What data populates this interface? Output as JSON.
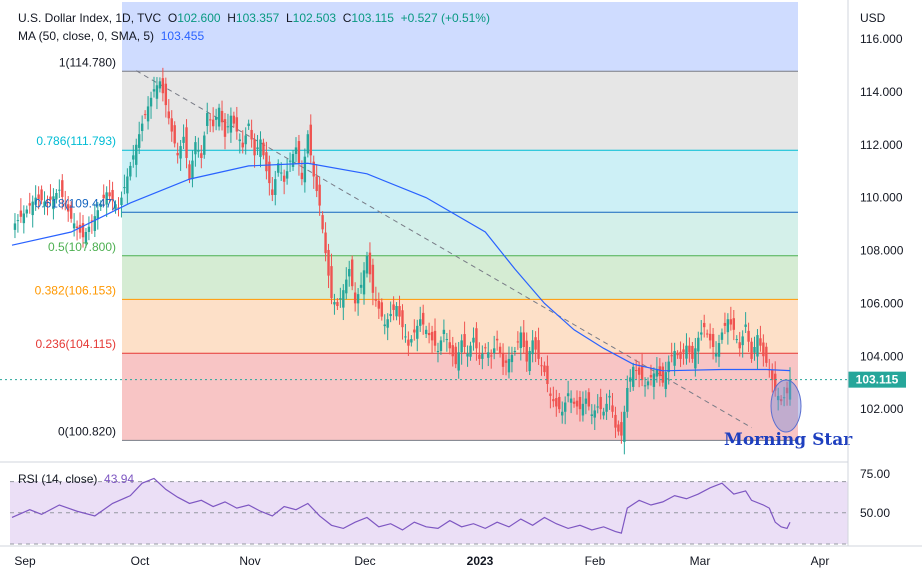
{
  "header": {
    "symbol": "U.S. Dollar Index, 1D, TVC",
    "open_label": "O",
    "open": "102.600",
    "high_label": "H",
    "high": "103.357",
    "low_label": "L",
    "low": "102.503",
    "close_label": "C",
    "close": "103.115",
    "change": "+0.527 (+0.51%)",
    "ma_label": "MA (50, close, 0, SMA, 5)",
    "ma_value": "103.455"
  },
  "rsi_header": {
    "label": "RSI (14, close)",
    "value": "43.94"
  },
  "currency": "USD",
  "annotation": "Morning Star",
  "price_tag": "103.115",
  "colors": {
    "up": "#26a69a",
    "down": "#ef5350",
    "ma": "#2962ff",
    "rsi": "#7e57c2",
    "fib_0": "#f8c5c5",
    "fib_236": "#fde0c8",
    "fib_382": "#d5ecd3",
    "fib_5": "#d4f0ea",
    "fib_618": "#cdf0f6",
    "fib_786": "#e6e6e6",
    "fib_top": "#cfdcff"
  },
  "chart_data": [
    {
      "type": "candlestick",
      "title": "U.S. Dollar Index, 1D, TVC",
      "ylabel": "USD",
      "ylim": [
        100.0,
        117.4
      ],
      "y_ticks": [
        "116.000",
        "114.000",
        "112.000",
        "110.000",
        "108.000",
        "106.000",
        "104.000",
        "102.000"
      ],
      "x_ticks": [
        "Sep",
        "Oct",
        "Nov",
        "Dec",
        "2023",
        "Feb",
        "Mar",
        "Apr"
      ],
      "fib_levels": [
        {
          "label": "1(114.780)",
          "value": 114.78
        },
        {
          "label": "0.786(111.793)",
          "value": 111.793
        },
        {
          "label": "0.618(109.447)",
          "value": 109.447
        },
        {
          "label": "0.5(107.800)",
          "value": 107.8
        },
        {
          "label": "0.382(106.153)",
          "value": 106.153
        },
        {
          "label": "0.236(104.115)",
          "value": 104.115
        },
        {
          "label": "0(100.820)",
          "value": 100.82
        }
      ],
      "close_points": [
        [
          0,
          108.9
        ],
        [
          4,
          109.4
        ],
        [
          8,
          110.0
        ],
        [
          12,
          109.8
        ],
        [
          16,
          110.3
        ],
        [
          20,
          109.2
        ],
        [
          24,
          108.5
        ],
        [
          28,
          109.3
        ],
        [
          32,
          110.2
        ],
        [
          36,
          109.6
        ],
        [
          40,
          111.2
        ],
        [
          44,
          112.8
        ],
        [
          48,
          114.1
        ],
        [
          50,
          114.4
        ],
        [
          52,
          113.5
        ],
        [
          54,
          112.5
        ],
        [
          56,
          111.6
        ],
        [
          58,
          112.3
        ],
        [
          60,
          110.7
        ],
        [
          62,
          112.1
        ],
        [
          64,
          111.5
        ],
        [
          66,
          113.2
        ],
        [
          68,
          112.7
        ],
        [
          70,
          113.4
        ],
        [
          72,
          112.3
        ],
        [
          74,
          113.1
        ],
        [
          76,
          112.5
        ],
        [
          78,
          111.9
        ],
        [
          80,
          112.8
        ],
        [
          82,
          111.6
        ],
        [
          84,
          112.2
        ],
        [
          86,
          111.0
        ],
        [
          88,
          110.1
        ],
        [
          90,
          111.3
        ],
        [
          92,
          110.6
        ],
        [
          94,
          111.4
        ],
        [
          96,
          111.9
        ],
        [
          98,
          110.7
        ],
        [
          100,
          112.4
        ],
        [
          102,
          110.8
        ],
        [
          104,
          109.7
        ],
        [
          106,
          107.9
        ],
        [
          108,
          106.2
        ],
        [
          110,
          105.9
        ],
        [
          112,
          106.5
        ],
        [
          114,
          107.3
        ],
        [
          116,
          106.0
        ],
        [
          118,
          106.7
        ],
        [
          120,
          107.8
        ],
        [
          122,
          106.4
        ],
        [
          124,
          105.8
        ],
        [
          126,
          105.2
        ],
        [
          128,
          105.6
        ],
        [
          130,
          105.9
        ],
        [
          132,
          105.1
        ],
        [
          134,
          104.4
        ],
        [
          136,
          104.9
        ],
        [
          138,
          105.4
        ],
        [
          140,
          105.0
        ],
        [
          142,
          104.6
        ],
        [
          144,
          104.2
        ],
        [
          146,
          105.0
        ],
        [
          148,
          104.3
        ],
        [
          150,
          103.7
        ],
        [
          152,
          104.6
        ],
        [
          154,
          104.1
        ],
        [
          156,
          104.7
        ],
        [
          158,
          103.9
        ],
        [
          160,
          104.3
        ],
        [
          162,
          104.0
        ],
        [
          164,
          104.6
        ],
        [
          166,
          103.6
        ],
        [
          168,
          103.9
        ],
        [
          170,
          104.2
        ],
        [
          172,
          104.9
        ],
        [
          174,
          103.8
        ],
        [
          176,
          104.6
        ],
        [
          178,
          103.9
        ],
        [
          180,
          103.4
        ],
        [
          182,
          102.5
        ],
        [
          184,
          102.1
        ],
        [
          186,
          101.9
        ],
        [
          188,
          102.6
        ],
        [
          190,
          102.2
        ],
        [
          192,
          102.0
        ],
        [
          194,
          102.4
        ],
        [
          196,
          101.8
        ],
        [
          198,
          102.1
        ],
        [
          200,
          101.9
        ],
        [
          202,
          102.5
        ],
        [
          204,
          101.3
        ],
        [
          206,
          101.0
        ],
        [
          208,
          102.8
        ],
        [
          210,
          103.6
        ],
        [
          212,
          103.3
        ],
        [
          214,
          102.9
        ],
        [
          216,
          103.2
        ],
        [
          218,
          103.5
        ],
        [
          220,
          103.0
        ],
        [
          222,
          103.8
        ],
        [
          224,
          104.2
        ],
        [
          226,
          103.9
        ],
        [
          228,
          104.4
        ],
        [
          230,
          103.9
        ],
        [
          232,
          104.7
        ],
        [
          234,
          105.1
        ],
        [
          236,
          104.6
        ],
        [
          238,
          104.1
        ],
        [
          240,
          104.9
        ],
        [
          242,
          105.4
        ],
        [
          244,
          105.0
        ],
        [
          246,
          104.3
        ],
        [
          248,
          105.2
        ],
        [
          250,
          103.9
        ],
        [
          252,
          104.8
        ],
        [
          254,
          104.0
        ],
        [
          256,
          103.5
        ],
        [
          258,
          102.7
        ],
        [
          260,
          102.3
        ],
        [
          262,
          102.6
        ],
        [
          263,
          103.115
        ]
      ],
      "ma_points": [
        [
          0,
          108.2
        ],
        [
          20,
          108.7
        ],
        [
          40,
          109.8
        ],
        [
          60,
          110.7
        ],
        [
          80,
          111.2
        ],
        [
          100,
          111.3
        ],
        [
          120,
          110.9
        ],
        [
          140,
          110.0
        ],
        [
          160,
          108.7
        ],
        [
          170,
          107.3
        ],
        [
          180,
          106.0
        ],
        [
          190,
          105.0
        ],
        [
          200,
          104.3
        ],
        [
          210,
          103.7
        ],
        [
          220,
          103.45
        ],
        [
          240,
          103.5
        ],
        [
          255,
          103.5
        ],
        [
          263,
          103.455
        ]
      ],
      "trend_line": [
        [
          42,
          114.8
        ],
        [
          250,
          101.3
        ]
      ]
    },
    {
      "type": "line",
      "title": "RSI (14, close)",
      "ylim": [
        30,
        80
      ],
      "y_ticks": [
        "75.00",
        "50.00"
      ],
      "bands": [
        70,
        30
      ],
      "values": [
        [
          0,
          47
        ],
        [
          6,
          52
        ],
        [
          10,
          49
        ],
        [
          16,
          55
        ],
        [
          22,
          51
        ],
        [
          28,
          48
        ],
        [
          34,
          56
        ],
        [
          40,
          61
        ],
        [
          44,
          69
        ],
        [
          48,
          72
        ],
        [
          52,
          65
        ],
        [
          56,
          60
        ],
        [
          60,
          56
        ],
        [
          64,
          58
        ],
        [
          68,
          54
        ],
        [
          72,
          57
        ],
        [
          76,
          53
        ],
        [
          80,
          55
        ],
        [
          84,
          51
        ],
        [
          88,
          48
        ],
        [
          92,
          54
        ],
        [
          96,
          52
        ],
        [
          100,
          56
        ],
        [
          104,
          48
        ],
        [
          108,
          42
        ],
        [
          112,
          40
        ],
        [
          116,
          44
        ],
        [
          120,
          47
        ],
        [
          124,
          41
        ],
        [
          128,
          43
        ],
        [
          132,
          39
        ],
        [
          136,
          44
        ],
        [
          140,
          41
        ],
        [
          144,
          40
        ],
        [
          148,
          45
        ],
        [
          152,
          41
        ],
        [
          156,
          43
        ],
        [
          160,
          40
        ],
        [
          164,
          44
        ],
        [
          168,
          41
        ],
        [
          172,
          46
        ],
        [
          176,
          42
        ],
        [
          180,
          47
        ],
        [
          184,
          43
        ],
        [
          188,
          40
        ],
        [
          192,
          42
        ],
        [
          196,
          39
        ],
        [
          200,
          41
        ],
        [
          204,
          38
        ],
        [
          206,
          37
        ],
        [
          208,
          53
        ],
        [
          212,
          58
        ],
        [
          216,
          55
        ],
        [
          220,
          57
        ],
        [
          224,
          61
        ],
        [
          228,
          59
        ],
        [
          232,
          62
        ],
        [
          236,
          66
        ],
        [
          240,
          69
        ],
        [
          244,
          62
        ],
        [
          248,
          64
        ],
        [
          250,
          58
        ],
        [
          254,
          55
        ],
        [
          256,
          53
        ],
        [
          258,
          44
        ],
        [
          260,
          41
        ],
        [
          262,
          40
        ],
        [
          263,
          43.94
        ]
      ]
    }
  ]
}
